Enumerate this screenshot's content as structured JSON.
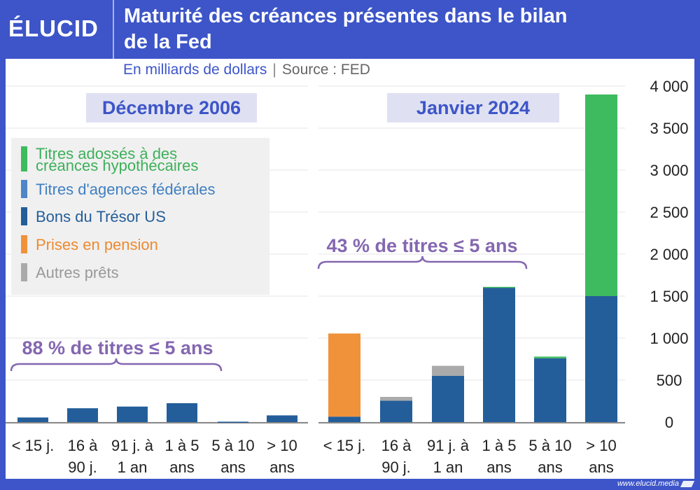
{
  "header": {
    "logo": "ÉLUCID",
    "title_line1": "Maturité des créances présentes dans le bilan",
    "title_line2": "de la Fed",
    "subtitle": "En milliards de dollars",
    "source": "Source : FED"
  },
  "footer": {
    "site": "www.elucid.media"
  },
  "chart_data": {
    "type": "bar",
    "stacked": true,
    "y_ticks": [
      "0",
      "500",
      "1 000",
      "1 500",
      "2 000",
      "2 500",
      "3 000",
      "3 500",
      "4 000"
    ],
    "ylim": [
      0,
      4000
    ],
    "grid": true,
    "legend_position": "top-left",
    "categories": [
      [
        "< 15 j."
      ],
      [
        "16 à",
        "90 j."
      ],
      [
        "91 j. à",
        "1 an"
      ],
      [
        "1 à 5",
        "ans"
      ],
      [
        "5 à 10",
        "ans"
      ],
      [
        "> 10",
        "ans"
      ]
    ],
    "legend": [
      {
        "label_line1": "Titres adossés à des",
        "label_line2": "créances hypothécaires",
        "color": "#3dbb5e",
        "text_color": "#3db05a"
      },
      {
        "label_line1": "Titres d'agences fédérales",
        "label_line2": "",
        "color": "#4f86c6",
        "text_color": "#3f7fc1"
      },
      {
        "label_line1": "Bons du Trésor US",
        "label_line2": "",
        "color": "#245e9a",
        "text_color": "#245e9a"
      },
      {
        "label_line1": "Prises en pension",
        "label_line2": "",
        "color": "#f0923a",
        "text_color": "#ee8a2e"
      },
      {
        "label_line1": "Autres prêts",
        "label_line2": "",
        "color": "#aaaaaa",
        "text_color": "#999999"
      }
    ],
    "panels": [
      {
        "title": "Décembre 2006",
        "annotation": "88 % de titres ≤ 5 ans",
        "series": [
          {
            "values": [
              0,
              0,
              0,
              0,
              0,
              0
            ]
          },
          {
            "values": [
              0,
              0,
              0,
              0,
              0,
              0
            ]
          },
          {
            "values": [
              55,
              165,
              185,
              225,
              5,
              80
            ]
          },
          {
            "values": [
              0,
              0,
              0,
              0,
              0,
              0
            ]
          },
          {
            "values": [
              0,
              0,
              0,
              0,
              0,
              0
            ]
          }
        ]
      },
      {
        "title": "Janvier 2024",
        "annotation": "43 % de titres ≤ 5 ans",
        "series": [
          {
            "values": [
              0,
              0,
              0,
              10,
              20,
              2400
            ]
          },
          {
            "values": [
              0,
              0,
              0,
              0,
              0,
              0
            ]
          },
          {
            "values": [
              65,
              255,
              550,
              1600,
              760,
              1500
            ]
          },
          {
            "values": [
              990,
              0,
              0,
              0,
              0,
              0
            ]
          },
          {
            "values": [
              0,
              45,
              120,
              0,
              0,
              0
            ]
          }
        ]
      }
    ]
  }
}
